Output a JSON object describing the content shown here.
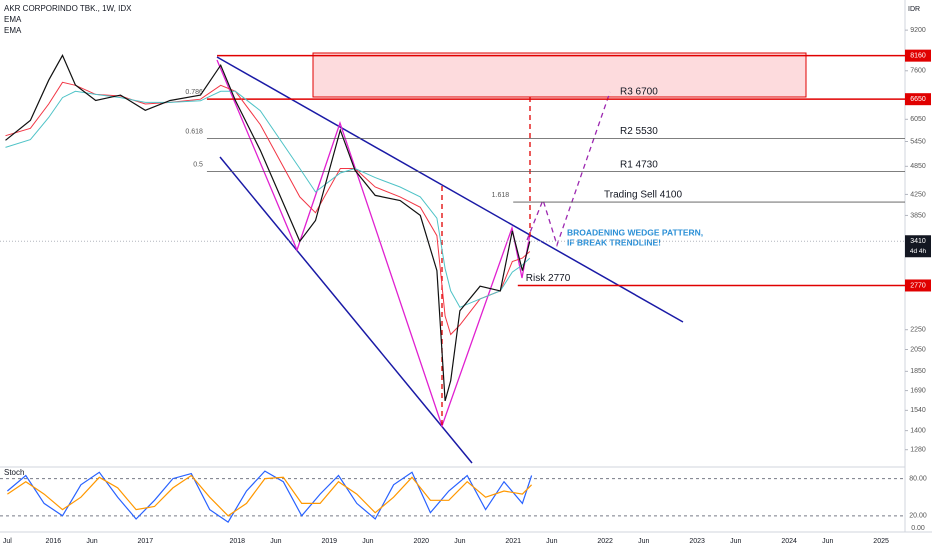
{
  "chart_data": [
    {
      "type": "line",
      "title": "AKR CORPORINDO TBK., 1W, IDX",
      "currency": "IDR",
      "log_scale": true,
      "x": [
        2015.48,
        2015.75,
        2015.95,
        2016.1,
        2016.24,
        2016.46,
        2016.73,
        2017.0,
        2017.27,
        2017.6,
        2017.82,
        2017.98,
        2018.25,
        2018.68,
        2018.85,
        2019.12,
        2019.28,
        2019.5,
        2019.77,
        2019.99,
        2020.17,
        2020.26,
        2020.32,
        2020.42,
        2020.64,
        2020.86,
        2020.99,
        2021.1,
        2021.18
      ],
      "series": [
        {
          "name": "EMA",
          "color": "#f23645",
          "values": [
            5600,
            5800,
            6500,
            7200,
            7100,
            6800,
            6750,
            6500,
            6550,
            6650,
            7100,
            6900,
            5900,
            4200,
            3900,
            4800,
            4800,
            4400,
            4200,
            4000,
            3500,
            2400,
            2200,
            2300,
            2600,
            2700,
            3100,
            3150,
            3250
          ]
        },
        {
          "name": "EMA",
          "color": "#4fc3c7",
          "values": [
            5300,
            5500,
            6100,
            6700,
            6900,
            6800,
            6700,
            6550,
            6550,
            6600,
            6900,
            6900,
            6300,
            4800,
            4300,
            4700,
            4800,
            4600,
            4400,
            4200,
            3800,
            3000,
            2700,
            2500,
            2600,
            2700,
            2950,
            3050,
            3150
          ]
        },
        {
          "color": "#111111",
          "values": [
            5480,
            6020,
            7270,
            8170,
            7110,
            6610,
            6780,
            6310,
            6610,
            6780,
            7800,
            6610,
            5230,
            3410,
            3760,
            5750,
            4760,
            4230,
            4130,
            3850,
            2970,
            1610,
            1770,
            2460,
            2760,
            2700,
            3580,
            2970,
            3410
          ]
        }
      ],
      "xlim": [
        2015.42,
        2025.26
      ],
      "xticks": [
        {
          "value": 2015.5,
          "label": "Jul"
        },
        2016,
        {
          "value": 2016.42,
          "label": "Jun"
        },
        2017,
        2018,
        {
          "value": 2018.42,
          "label": "Jun"
        },
        2019,
        {
          "value": 2019.42,
          "label": "Jun"
        },
        2020,
        {
          "value": 2020.42,
          "label": "Jun"
        },
        2021,
        {
          "value": 2021.42,
          "label": "Jun"
        },
        2022,
        {
          "value": 2022.42,
          "label": "Jun"
        },
        2023,
        {
          "value": 2023.42,
          "label": "Jun"
        },
        2024,
        {
          "value": 2024.42,
          "label": "Jun"
        },
        2025
      ],
      "ylim": [
        1180,
        10600
      ],
      "yticks": [
        1280,
        1400,
        1540,
        1690,
        1850,
        2050,
        2250,
        3850,
        4250,
        4850,
        5450,
        6050,
        7600,
        9200
      ],
      "levels": [
        {
          "value": 8160,
          "color": "#e00000",
          "from": 2017.78,
          "tag": true
        },
        {
          "value": 6650,
          "color": "#e00000",
          "from": 2017.67,
          "tag": true,
          "fib": "0.786"
        },
        {
          "value": 5530,
          "color": "#555555",
          "from": 2017.67,
          "fib": "0.618",
          "label": "R2 5530"
        },
        {
          "value": 4730,
          "color": "#555555",
          "from": 2017.67,
          "fib": "0.5",
          "label": "R1 4730"
        },
        {
          "value": 4100,
          "color": "#555555",
          "from": 2021.0,
          "fib": "1.618",
          "label": "Trading Sell 4100"
        },
        {
          "value": 2770,
          "color": "#e00000",
          "from": 2021.05,
          "tag": true,
          "label": "Risk 2770"
        }
      ],
      "last_price": {
        "value": 3410,
        "countdown": "4d 4h"
      },
      "annotations": [
        "R3 6700",
        "BROADENING WEDGE PATTERN,",
        "IF BREAK TRENDLINE!"
      ]
    },
    {
      "type": "line",
      "title": "Stoch",
      "x": [
        2015.5,
        2015.7,
        2015.9,
        2016.1,
        2016.3,
        2016.5,
        2016.7,
        2016.9,
        2017.1,
        2017.3,
        2017.5,
        2017.7,
        2017.9,
        2018.1,
        2018.3,
        2018.5,
        2018.7,
        2018.9,
        2019.1,
        2019.3,
        2019.5,
        2019.7,
        2019.9,
        2020.1,
        2020.3,
        2020.5,
        2020.7,
        2020.9,
        2021.1,
        2021.2
      ],
      "series": [
        {
          "color": "#2962ff",
          "values": [
            60,
            85,
            40,
            20,
            70,
            90,
            50,
            15,
            45,
            80,
            88,
            30,
            10,
            60,
            92,
            75,
            20,
            55,
            85,
            40,
            15,
            70,
            90,
            25,
            60,
            85,
            30,
            75,
            40,
            85
          ]
        },
        {
          "color": "#ff9800",
          "values": [
            55,
            75,
            55,
            30,
            50,
            82,
            65,
            30,
            35,
            65,
            85,
            50,
            20,
            40,
            80,
            82,
            40,
            40,
            75,
            55,
            25,
            50,
            82,
            45,
            45,
            75,
            50,
            60,
            55,
            70
          ]
        }
      ],
      "ylim": [
        -6,
        97
      ],
      "yticks": [
        {
          "value": 0,
          "label": "0.00"
        },
        {
          "value": 20,
          "label": "20.00"
        },
        {
          "value": 80,
          "label": "80.00"
        }
      ]
    }
  ]
}
